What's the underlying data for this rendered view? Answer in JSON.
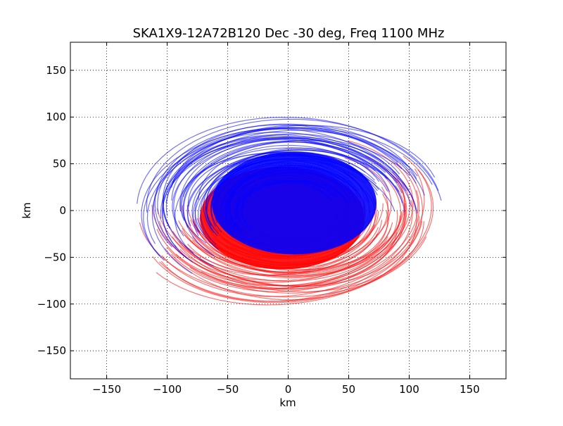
{
  "chart_data": {
    "type": "scatter",
    "title": "SKA1X9-12A72B120 Dec -30 deg, Freq 1100 MHz",
    "xlabel": "km",
    "ylabel": "km",
    "xlim": [
      -180,
      180
    ],
    "ylim": [
      -180,
      180
    ],
    "xticks": [
      -150,
      -100,
      -50,
      0,
      50,
      100,
      150
    ],
    "yticks": [
      -150,
      -100,
      -50,
      0,
      50,
      100,
      150
    ],
    "xtick_labels": [
      "−150",
      "−100",
      "−50",
      "0",
      "50",
      "100",
      "150"
    ],
    "ytick_labels": [
      "−150",
      "−100",
      "−50",
      "0",
      "50",
      "100",
      "150"
    ],
    "grid": true,
    "legend": "none",
    "series": [
      {
        "color": "#ff0000",
        "description_shape": "uv tracks (lower / left arcs, drawn first)",
        "arc_center": [
          0,
          0
        ],
        "arc_extent": {
          "x_min": -118,
          "x_max": 102,
          "y_min": -122,
          "y_max": 52
        },
        "values_note": "u-v coverage sampled as elliptical tracks"
      },
      {
        "color": "#0000ff",
        "description_shape": "uv tracks (upper / right arcs, drawn on top)",
        "arc_center": [
          0,
          0
        ],
        "arc_extent": {
          "x_min": -102,
          "x_max": 120,
          "y_min": -72,
          "y_max": 121
        },
        "values_note": "conjugate u-v coverage tracks"
      }
    ]
  }
}
